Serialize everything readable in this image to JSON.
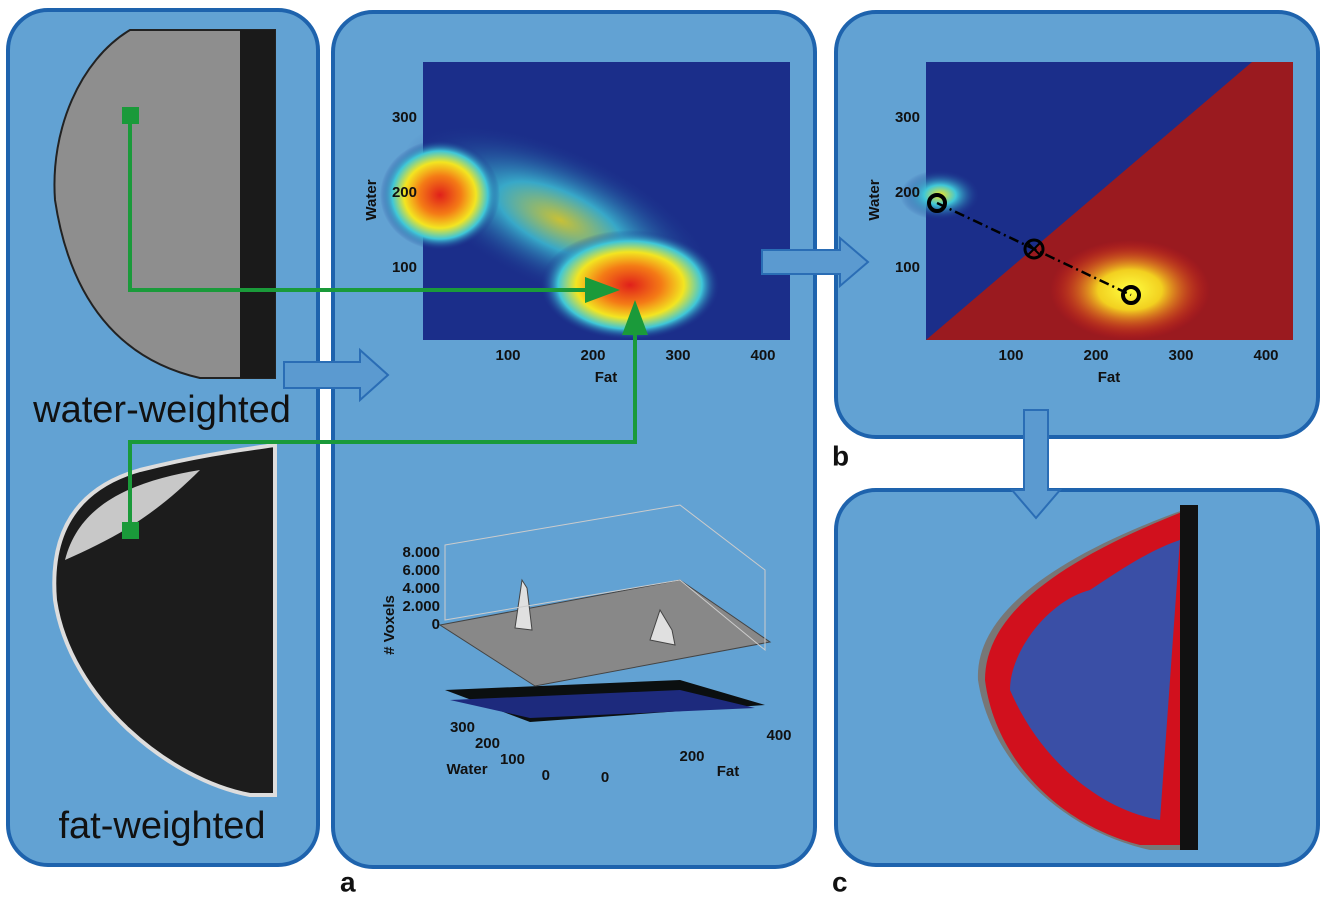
{
  "panel_a": {
    "label": "a",
    "images": {
      "water": "water-weighted",
      "fat": "fat-weighted"
    },
    "scatter": {
      "x_label": "Fat",
      "y_label": "Water",
      "x_ticks": [
        "100",
        "200",
        "300",
        "400"
      ],
      "y_ticks": [
        "300",
        "200",
        "100"
      ]
    },
    "histogram": {
      "z_label": "# Voxels",
      "z_ticks": [
        "8.000",
        "6.000",
        "4.000",
        "2.000",
        "0"
      ],
      "water_label": "Water",
      "water_ticks": [
        "300",
        "200",
        "100",
        "0"
      ],
      "fat_label": "Fat",
      "fat_ticks": [
        "0",
        "200",
        "400"
      ]
    }
  },
  "panel_b": {
    "label": "b",
    "scatter": {
      "x_label": "Fat",
      "y_label": "Water",
      "x_ticks": [
        "100",
        "200",
        "300",
        "400"
      ],
      "y_ticks": [
        "300",
        "200",
        "100"
      ]
    }
  },
  "panel_c": {
    "label": "c"
  }
}
